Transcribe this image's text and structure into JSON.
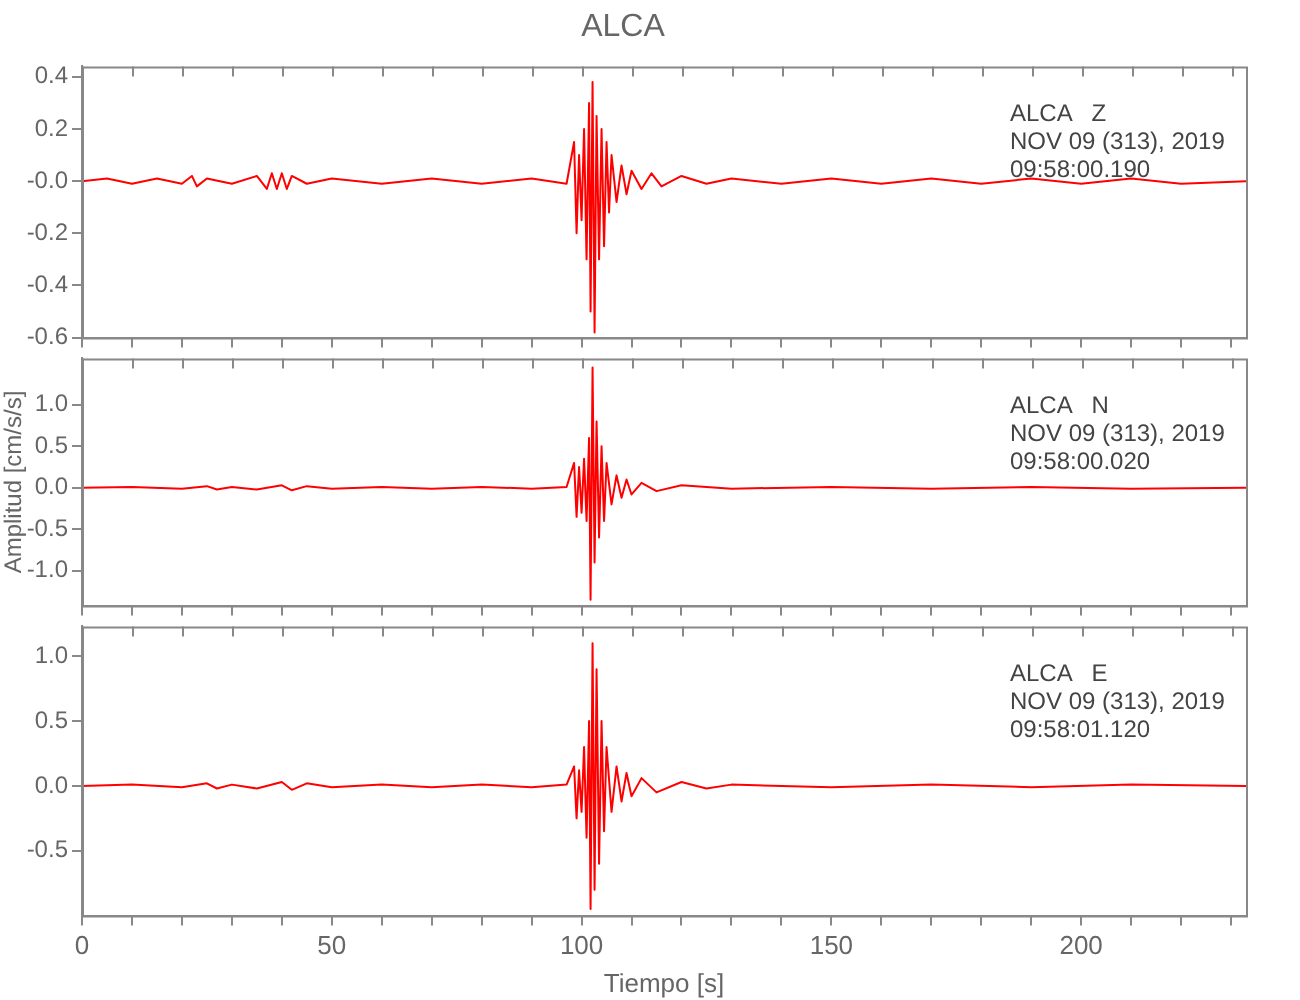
{
  "chart_data": [
    {
      "type": "line",
      "title": "ALCA",
      "annotations": [
        "ALCA   Z",
        "NOV 09 (313), 2019",
        "09:58:00.190"
      ],
      "color": "#ff0000",
      "tick_labels": "y",
      "grid": false,
      "marker": "none",
      "line_style": "solid",
      "xlim": [
        0,
        233
      ],
      "xticks": [
        0,
        {
          "value": 10,
          "label": null
        },
        {
          "value": 20,
          "label": null
        },
        {
          "value": 30,
          "label": null
        },
        {
          "value": 40,
          "label": null
        },
        50,
        {
          "value": 60,
          "label": null
        },
        {
          "value": 70,
          "label": null
        },
        {
          "value": 80,
          "label": null
        },
        {
          "value": 90,
          "label": null
        },
        100,
        {
          "value": 110,
          "label": null
        },
        {
          "value": 120,
          "label": null
        },
        {
          "value": 130,
          "label": null
        },
        {
          "value": 140,
          "label": null
        },
        150,
        {
          "value": 160,
          "label": null
        },
        {
          "value": 170,
          "label": null
        },
        {
          "value": 180,
          "label": null
        },
        {
          "value": 190,
          "label": null
        },
        200,
        {
          "value": 210,
          "label": null
        },
        {
          "value": 220,
          "label": null
        },
        {
          "value": 230,
          "label": null
        }
      ],
      "ylim": [
        -0.6,
        0.44
      ],
      "yticks": [
        -0.6,
        -0.4,
        -0.2,
        {
          "value": 0,
          "label": "-0.0"
        },
        0.2,
        0.4
      ],
      "x": [
        0,
        5,
        10,
        15,
        20,
        22,
        23,
        25,
        30,
        35,
        37,
        38,
        39,
        40,
        41,
        42,
        45,
        50,
        60,
        70,
        80,
        90,
        97,
        98.5,
        99,
        99.5,
        100,
        100.5,
        101,
        101.5,
        101.8,
        102.2,
        102.6,
        103,
        103.5,
        104,
        104.5,
        105,
        105.5,
        106,
        107,
        108,
        109,
        110,
        112,
        114,
        116,
        120,
        125,
        130,
        140,
        150,
        160,
        170,
        180,
        190,
        200,
        210,
        220,
        233
      ],
      "values": [
        0,
        0.01,
        -0.01,
        0.01,
        -0.01,
        0.02,
        -0.02,
        0.01,
        -0.01,
        0.02,
        -0.03,
        0.03,
        -0.03,
        0.03,
        -0.03,
        0.02,
        -0.01,
        0.01,
        -0.01,
        0.01,
        -0.01,
        0.01,
        -0.01,
        0.15,
        -0.2,
        0.1,
        -0.15,
        0.2,
        -0.3,
        0.3,
        -0.5,
        0.38,
        -0.58,
        0.25,
        -0.3,
        0.2,
        -0.25,
        0.15,
        -0.12,
        0.1,
        -0.08,
        0.06,
        -0.05,
        0.04,
        -0.03,
        0.03,
        -0.02,
        0.02,
        -0.01,
        0.01,
        -0.01,
        0.01,
        -0.01,
        0.01,
        -0.01,
        0.01,
        -0.01,
        0.01,
        -0.01,
        0
      ]
    },
    {
      "type": "line",
      "ylabel": "Amplitud [cm/s/s]",
      "annotations": [
        "ALCA   N",
        "NOV 09 (313), 2019",
        "09:58:00.020"
      ],
      "color": "#ff0000",
      "tick_labels": "y",
      "grid": false,
      "marker": "none",
      "line_style": "solid",
      "xlim": [
        0,
        233
      ],
      "xticks": [
        0,
        {
          "value": 10,
          "label": null
        },
        {
          "value": 20,
          "label": null
        },
        {
          "value": 30,
          "label": null
        },
        {
          "value": 40,
          "label": null
        },
        50,
        {
          "value": 60,
          "label": null
        },
        {
          "value": 70,
          "label": null
        },
        {
          "value": 80,
          "label": null
        },
        {
          "value": 90,
          "label": null
        },
        100,
        {
          "value": 110,
          "label": null
        },
        {
          "value": 120,
          "label": null
        },
        {
          "value": 130,
          "label": null
        },
        {
          "value": 140,
          "label": null
        },
        150,
        {
          "value": 160,
          "label": null
        },
        {
          "value": 170,
          "label": null
        },
        {
          "value": 180,
          "label": null
        },
        {
          "value": 190,
          "label": null
        },
        200,
        {
          "value": 210,
          "label": null
        },
        {
          "value": 220,
          "label": null
        },
        {
          "value": 230,
          "label": null
        }
      ],
      "ylim": [
        -1.42,
        1.56
      ],
      "yticks": [
        {
          "value": -1,
          "label": "-1.0"
        },
        -0.5,
        {
          "value": 0,
          "label": "0.0"
        },
        0.5,
        {
          "value": 1,
          "label": "1.0"
        }
      ],
      "x": [
        0,
        10,
        20,
        25,
        27,
        30,
        35,
        40,
        42,
        45,
        50,
        60,
        70,
        80,
        90,
        97,
        98.5,
        99,
        99.5,
        100,
        100.5,
        101,
        101.5,
        101.8,
        102.2,
        102.6,
        103,
        103.5,
        104,
        104.5,
        105,
        106,
        107,
        108,
        109,
        110,
        112,
        115,
        120,
        130,
        150,
        170,
        190,
        210,
        233
      ],
      "values": [
        0,
        0.01,
        -0.01,
        0.02,
        -0.02,
        0.01,
        -0.02,
        0.03,
        -0.03,
        0.02,
        -0.01,
        0.01,
        -0.01,
        0.01,
        -0.01,
        0.01,
        0.3,
        -0.35,
        0.25,
        -0.3,
        0.35,
        -0.4,
        0.6,
        -1.35,
        1.45,
        -0.9,
        0.8,
        -0.6,
        0.5,
        -0.4,
        0.3,
        -0.2,
        0.15,
        -0.12,
        0.1,
        -0.08,
        0.06,
        -0.04,
        0.03,
        -0.01,
        0.01,
        -0.01,
        0.01,
        -0.01,
        0
      ]
    },
    {
      "type": "line",
      "xlabel": "Tiempo [s]",
      "annotations": [
        "ALCA   E",
        "NOV 09 (313), 2019",
        "09:58:01.120"
      ],
      "color": "#ff0000",
      "grid": false,
      "marker": "none",
      "line_style": "solid",
      "xlim": [
        0,
        233
      ],
      "xticks": [
        0,
        {
          "value": 10,
          "label": null
        },
        {
          "value": 20,
          "label": null
        },
        {
          "value": 30,
          "label": null
        },
        {
          "value": 40,
          "label": null
        },
        50,
        {
          "value": 60,
          "label": null
        },
        {
          "value": 70,
          "label": null
        },
        {
          "value": 80,
          "label": null
        },
        {
          "value": 90,
          "label": null
        },
        100,
        {
          "value": 110,
          "label": null
        },
        {
          "value": 120,
          "label": null
        },
        {
          "value": 130,
          "label": null
        },
        {
          "value": 140,
          "label": null
        },
        150,
        {
          "value": 160,
          "label": null
        },
        {
          "value": 170,
          "label": null
        },
        {
          "value": 180,
          "label": null
        },
        {
          "value": 190,
          "label": null
        },
        200,
        {
          "value": 210,
          "label": null
        },
        {
          "value": 220,
          "label": null
        },
        {
          "value": 230,
          "label": null
        }
      ],
      "ylim": [
        -1,
        1.23
      ],
      "yticks": [
        -0.5,
        {
          "value": 0,
          "label": "0.0"
        },
        0.5,
        {
          "value": 1,
          "label": "1.0"
        }
      ],
      "x": [
        0,
        10,
        20,
        25,
        27,
        30,
        35,
        40,
        42,
        45,
        50,
        60,
        70,
        80,
        90,
        97,
        98.5,
        99,
        99.5,
        100,
        100.5,
        101,
        101.5,
        101.8,
        102.2,
        102.6,
        103,
        103.5,
        104,
        104.5,
        105,
        106,
        107,
        108,
        109,
        110,
        112,
        115,
        120,
        125,
        130,
        150,
        170,
        190,
        210,
        233
      ],
      "values": [
        0,
        0.01,
        -0.01,
        0.02,
        -0.02,
        0.01,
        -0.02,
        0.03,
        -0.03,
        0.02,
        -0.01,
        0.01,
        -0.01,
        0.01,
        -0.01,
        0.01,
        0.15,
        -0.25,
        0.12,
        -0.2,
        0.3,
        -0.4,
        0.5,
        -0.95,
        1.1,
        -0.8,
        0.9,
        -0.6,
        0.5,
        -0.35,
        0.3,
        -0.2,
        0.15,
        -0.12,
        0.1,
        -0.08,
        0.06,
        -0.05,
        0.03,
        -0.02,
        0.01,
        -0.01,
        0.01,
        -0.01,
        0.01,
        0
      ]
    }
  ]
}
